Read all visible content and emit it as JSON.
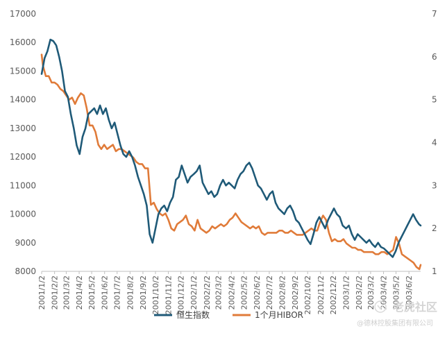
{
  "chart_data": {
    "type": "line",
    "x": [
      "2001/1/2",
      "2001/2/2",
      "2001/3/2",
      "2001/4/2",
      "2001/5/2",
      "2001/6/2",
      "2001/7/2",
      "2001/8/2",
      "2001/9/2",
      "2001/10/2",
      "2001/11/2",
      "2001/12/2",
      "2002/1/2",
      "2002/2/2",
      "2002/3/2",
      "2002/4/2",
      "2002/5/2",
      "2002/6/2",
      "2002/7/2",
      "2002/8/2",
      "2002/9/2",
      "2002/10/2",
      "2002/11/2",
      "2002/12/2",
      "2003/1/2",
      "2003/2/2",
      "2003/3/2",
      "2003/4/2",
      "2003/5/2",
      "2003/6/2"
    ],
    "x_labels": [
      "2001/1/2",
      "2001/2/2",
      "2001/3/2",
      "2001/4/2",
      "2001/5/2",
      "2001/6/2",
      "2001/7/2",
      "2001/8/2",
      "2001/9/2",
      "2001/10/2",
      "2001/11/2",
      "2001/12/2",
      "2002/1/2",
      "2002/2/2",
      "2002/3/2",
      "2002/4/2",
      "2002/5/2",
      "2002/6/2",
      "2002/7/2",
      "2002/8/2",
      "2002/9/2",
      "2002/10/2",
      "2002/11/2",
      "2002/12/2",
      "2003/1/2",
      "2003/2/2",
      "2003/3/2",
      "2003/4/2",
      "2003/5/2",
      "2003/6/2"
    ],
    "x_end": "2003/6/30",
    "y_left": {
      "min": 8000,
      "max": 17000,
      "step": 1000,
      "ticks": [
        "8000",
        "9000",
        "10000",
        "11000",
        "12000",
        "13000",
        "14000",
        "15000",
        "16000",
        "17000"
      ]
    },
    "y_right": {
      "min": 1,
      "max": 7,
      "step": 1,
      "ticks": [
        "1",
        "2",
        "3",
        "4",
        "5",
        "6",
        "7"
      ]
    },
    "grid": false,
    "legend_position": "bottom",
    "series": [
      {
        "name": "恒生指数",
        "color": "#1f5a78",
        "axis": "left",
        "points": [
          [
            "2001/1/2",
            14900
          ],
          [
            "2001/1/9",
            15450
          ],
          [
            "2001/1/16",
            15700
          ],
          [
            "2001/1/23",
            16100
          ],
          [
            "2001/1/30",
            16050
          ],
          [
            "2001/2/6",
            15900
          ],
          [
            "2001/2/13",
            15500
          ],
          [
            "2001/2/20",
            15000
          ],
          [
            "2001/2/27",
            14300
          ],
          [
            "2001/3/6",
            14100
          ],
          [
            "2001/3/13",
            13500
          ],
          [
            "2001/3/20",
            13000
          ],
          [
            "2001/3/27",
            12400
          ],
          [
            "2001/4/3",
            12100
          ],
          [
            "2001/4/10",
            12700
          ],
          [
            "2001/4/17",
            13000
          ],
          [
            "2001/4/24",
            13500
          ],
          [
            "2001/5/1",
            13600
          ],
          [
            "2001/5/8",
            13700
          ],
          [
            "2001/5/15",
            13500
          ],
          [
            "2001/5/22",
            13800
          ],
          [
            "2001/5/29",
            13500
          ],
          [
            "2001/6/5",
            13700
          ],
          [
            "2001/6/12",
            13300
          ],
          [
            "2001/6/19",
            13000
          ],
          [
            "2001/6/26",
            13200
          ],
          [
            "2001/7/3",
            12800
          ],
          [
            "2001/7/10",
            12400
          ],
          [
            "2001/7/17",
            12100
          ],
          [
            "2001/7/24",
            12000
          ],
          [
            "2001/7/31",
            12200
          ],
          [
            "2001/8/7",
            12000
          ],
          [
            "2001/8/14",
            11700
          ],
          [
            "2001/8/21",
            11300
          ],
          [
            "2001/8/28",
            11000
          ],
          [
            "2001/9/4",
            10700
          ],
          [
            "2001/9/11",
            10300
          ],
          [
            "2001/9/18",
            9300
          ],
          [
            "2001/9/25",
            9000
          ],
          [
            "2001/10/2",
            9500
          ],
          [
            "2001/10/9",
            10000
          ],
          [
            "2001/10/16",
            10200
          ],
          [
            "2001/10/23",
            10300
          ],
          [
            "2001/10/30",
            10100
          ],
          [
            "2001/11/6",
            10400
          ],
          [
            "2001/11/13",
            10600
          ],
          [
            "2001/11/20",
            11200
          ],
          [
            "2001/11/27",
            11300
          ],
          [
            "2001/12/4",
            11700
          ],
          [
            "2001/12/11",
            11400
          ],
          [
            "2001/12/18",
            11100
          ],
          [
            "2001/12/25",
            11300
          ],
          [
            "2002/1/2",
            11400
          ],
          [
            "2002/1/9",
            11500
          ],
          [
            "2002/1/16",
            11700
          ],
          [
            "2002/1/23",
            11100
          ],
          [
            "2002/1/30",
            10900
          ],
          [
            "2002/2/6",
            10700
          ],
          [
            "2002/2/13",
            10800
          ],
          [
            "2002/2/20",
            10600
          ],
          [
            "2002/2/27",
            10700
          ],
          [
            "2002/3/6",
            11000
          ],
          [
            "2002/3/13",
            11200
          ],
          [
            "2002/3/20",
            11000
          ],
          [
            "2002/3/27",
            11100
          ],
          [
            "2002/4/3",
            11000
          ],
          [
            "2002/4/10",
            10900
          ],
          [
            "2002/4/17",
            11200
          ],
          [
            "2002/4/24",
            11400
          ],
          [
            "2002/5/1",
            11500
          ],
          [
            "2002/5/8",
            11700
          ],
          [
            "2002/5/15",
            11800
          ],
          [
            "2002/5/22",
            11600
          ],
          [
            "2002/5/29",
            11300
          ],
          [
            "2002/6/5",
            11000
          ],
          [
            "2002/6/12",
            10900
          ],
          [
            "2002/6/19",
            10700
          ],
          [
            "2002/6/26",
            10500
          ],
          [
            "2002/7/3",
            10700
          ],
          [
            "2002/7/10",
            10800
          ],
          [
            "2002/7/17",
            10400
          ],
          [
            "2002/7/24",
            10200
          ],
          [
            "2002/7/31",
            10100
          ],
          [
            "2002/8/7",
            10000
          ],
          [
            "2002/8/14",
            10200
          ],
          [
            "2002/8/21",
            10300
          ],
          [
            "2002/8/28",
            10100
          ],
          [
            "2002/9/4",
            9800
          ],
          [
            "2002/9/11",
            9700
          ],
          [
            "2002/9/18",
            9500
          ],
          [
            "2002/9/25",
            9300
          ],
          [
            "2002/10/2",
            9100
          ],
          [
            "2002/10/9",
            8950
          ],
          [
            "2002/10/16",
            9300
          ],
          [
            "2002/10/23",
            9700
          ],
          [
            "2002/10/30",
            9900
          ],
          [
            "2002/11/6",
            9700
          ],
          [
            "2002/11/13",
            9500
          ],
          [
            "2002/11/20",
            9800
          ],
          [
            "2002/11/27",
            10000
          ],
          [
            "2002/12/4",
            10200
          ],
          [
            "2002/12/11",
            10000
          ],
          [
            "2002/12/18",
            9900
          ],
          [
            "2002/12/25",
            9600
          ],
          [
            "2003/1/2",
            9500
          ],
          [
            "2003/1/9",
            9600
          ],
          [
            "2003/1/16",
            9300
          ],
          [
            "2003/1/23",
            9100
          ],
          [
            "2003/1/30",
            9300
          ],
          [
            "2003/2/6",
            9200
          ],
          [
            "2003/2/13",
            9100
          ],
          [
            "2003/2/20",
            9000
          ],
          [
            "2003/2/27",
            9100
          ],
          [
            "2003/3/6",
            8950
          ],
          [
            "2003/3/13",
            8850
          ],
          [
            "2003/3/20",
            9000
          ],
          [
            "2003/3/27",
            8850
          ],
          [
            "2003/4/3",
            8800
          ],
          [
            "2003/4/10",
            8700
          ],
          [
            "2003/4/17",
            8600
          ],
          [
            "2003/4/24",
            8500
          ],
          [
            "2003/5/1",
            8700
          ],
          [
            "2003/5/8",
            9000
          ],
          [
            "2003/5/15",
            9200
          ],
          [
            "2003/5/22",
            9400
          ],
          [
            "2003/5/29",
            9600
          ],
          [
            "2003/6/5",
            9800
          ],
          [
            "2003/6/12",
            10000
          ],
          [
            "2003/6/19",
            9800
          ],
          [
            "2003/6/26",
            9650
          ],
          [
            "2003/6/30",
            9600
          ]
        ]
      },
      {
        "name": "1个月HIBOR",
        "color": "#e07b39",
        "axis": "right",
        "points": [
          [
            "2001/1/2",
            6.05
          ],
          [
            "2001/1/5",
            5.8
          ],
          [
            "2001/1/12",
            5.55
          ],
          [
            "2001/1/19",
            5.55
          ],
          [
            "2001/1/26",
            5.4
          ],
          [
            "2001/2/2",
            5.4
          ],
          [
            "2001/2/9",
            5.35
          ],
          [
            "2001/2/16",
            5.25
          ],
          [
            "2001/2/23",
            5.2
          ],
          [
            "2001/3/2",
            5.1
          ],
          [
            "2001/3/9",
            5.0
          ],
          [
            "2001/3/16",
            5.05
          ],
          [
            "2001/3/23",
            4.9
          ],
          [
            "2001/3/30",
            5.05
          ],
          [
            "2001/4/6",
            5.15
          ],
          [
            "2001/4/13",
            5.1
          ],
          [
            "2001/4/20",
            4.8
          ],
          [
            "2001/4/27",
            4.4
          ],
          [
            "2001/5/4",
            4.4
          ],
          [
            "2001/5/11",
            4.25
          ],
          [
            "2001/5/18",
            3.95
          ],
          [
            "2001/5/25",
            3.85
          ],
          [
            "2001/6/1",
            3.95
          ],
          [
            "2001/6/8",
            3.85
          ],
          [
            "2001/6/15",
            3.9
          ],
          [
            "2001/6/22",
            3.95
          ],
          [
            "2001/6/29",
            3.8
          ],
          [
            "2001/7/6",
            3.85
          ],
          [
            "2001/7/13",
            3.85
          ],
          [
            "2001/7/20",
            3.8
          ],
          [
            "2001/7/27",
            3.75
          ],
          [
            "2001/8/3",
            3.7
          ],
          [
            "2001/8/10",
            3.65
          ],
          [
            "2001/8/17",
            3.55
          ],
          [
            "2001/8/24",
            3.5
          ],
          [
            "2001/8/31",
            3.5
          ],
          [
            "2001/9/7",
            3.4
          ],
          [
            "2001/9/14",
            3.4
          ],
          [
            "2001/9/21",
            2.55
          ],
          [
            "2001/9/28",
            2.6
          ],
          [
            "2001/10/5",
            2.45
          ],
          [
            "2001/10/12",
            2.35
          ],
          [
            "2001/10/19",
            2.3
          ],
          [
            "2001/10/26",
            2.35
          ],
          [
            "2001/11/2",
            2.2
          ],
          [
            "2001/11/9",
            2.0
          ],
          [
            "2001/11/16",
            1.95
          ],
          [
            "2001/11/23",
            2.1
          ],
          [
            "2001/11/30",
            2.15
          ],
          [
            "2001/12/7",
            2.2
          ],
          [
            "2001/12/14",
            2.3
          ],
          [
            "2001/12/21",
            2.1
          ],
          [
            "2001/12/28",
            2.05
          ],
          [
            "2002/1/4",
            1.95
          ],
          [
            "2002/1/11",
            2.2
          ],
          [
            "2002/1/18",
            2.0
          ],
          [
            "2002/1/25",
            1.95
          ],
          [
            "2002/2/1",
            1.9
          ],
          [
            "2002/2/8",
            1.95
          ],
          [
            "2002/2/15",
            2.05
          ],
          [
            "2002/2/22",
            2.0
          ],
          [
            "2002/3/1",
            2.05
          ],
          [
            "2002/3/8",
            2.1
          ],
          [
            "2002/3/15",
            2.05
          ],
          [
            "2002/3/22",
            2.1
          ],
          [
            "2002/3/29",
            2.2
          ],
          [
            "2002/4/5",
            2.25
          ],
          [
            "2002/4/12",
            2.35
          ],
          [
            "2002/4/19",
            2.25
          ],
          [
            "2002/4/26",
            2.15
          ],
          [
            "2002/5/3",
            2.1
          ],
          [
            "2002/5/10",
            2.05
          ],
          [
            "2002/5/17",
            2.0
          ],
          [
            "2002/5/24",
            2.05
          ],
          [
            "2002/5/31",
            2.0
          ],
          [
            "2002/6/7",
            2.05
          ],
          [
            "2002/6/14",
            1.9
          ],
          [
            "2002/6/21",
            1.85
          ],
          [
            "2002/6/28",
            1.9
          ],
          [
            "2002/7/5",
            1.9
          ],
          [
            "2002/7/12",
            1.9
          ],
          [
            "2002/7/19",
            1.9
          ],
          [
            "2002/7/26",
            1.95
          ],
          [
            "2002/8/2",
            1.95
          ],
          [
            "2002/8/9",
            1.9
          ],
          [
            "2002/8/16",
            1.9
          ],
          [
            "2002/8/23",
            1.95
          ],
          [
            "2002/8/30",
            1.9
          ],
          [
            "2002/9/6",
            1.85
          ],
          [
            "2002/9/13",
            1.85
          ],
          [
            "2002/9/20",
            1.85
          ],
          [
            "2002/9/27",
            1.9
          ],
          [
            "2002/10/4",
            1.95
          ],
          [
            "2002/10/11",
            2.0
          ],
          [
            "2002/10/18",
            1.95
          ],
          [
            "2002/10/25",
            1.95
          ],
          [
            "2002/11/1",
            2.15
          ],
          [
            "2002/11/8",
            2.3
          ],
          [
            "2002/11/15",
            2.2
          ],
          [
            "2002/11/22",
            1.9
          ],
          [
            "2002/11/29",
            1.7
          ],
          [
            "2002/12/6",
            1.75
          ],
          [
            "2002/12/13",
            1.7
          ],
          [
            "2002/12/20",
            1.7
          ],
          [
            "2002/12/27",
            1.75
          ],
          [
            "2003/1/3",
            1.65
          ],
          [
            "2003/1/10",
            1.6
          ],
          [
            "2003/1/17",
            1.55
          ],
          [
            "2003/1/24",
            1.55
          ],
          [
            "2003/1/31",
            1.5
          ],
          [
            "2003/2/7",
            1.5
          ],
          [
            "2003/2/14",
            1.45
          ],
          [
            "2003/2/21",
            1.45
          ],
          [
            "2003/2/28",
            1.45
          ],
          [
            "2003/3/7",
            1.45
          ],
          [
            "2003/3/14",
            1.4
          ],
          [
            "2003/3/21",
            1.4
          ],
          [
            "2003/3/28",
            1.45
          ],
          [
            "2003/4/4",
            1.45
          ],
          [
            "2003/4/11",
            1.4
          ],
          [
            "2003/4/18",
            1.45
          ],
          [
            "2003/4/25",
            1.5
          ],
          [
            "2003/5/2",
            1.8
          ],
          [
            "2003/5/9",
            1.65
          ],
          [
            "2003/5/16",
            1.4
          ],
          [
            "2003/5/23",
            1.35
          ],
          [
            "2003/5/30",
            1.3
          ],
          [
            "2003/6/6",
            1.25
          ],
          [
            "2003/6/13",
            1.2
          ],
          [
            "2003/6/20",
            1.1
          ],
          [
            "2003/6/27",
            1.05
          ],
          [
            "2003/6/30",
            1.15
          ]
        ]
      }
    ]
  },
  "watermark": {
    "brand": "老虎社区",
    "source": "@德林控股集团有限公司"
  }
}
